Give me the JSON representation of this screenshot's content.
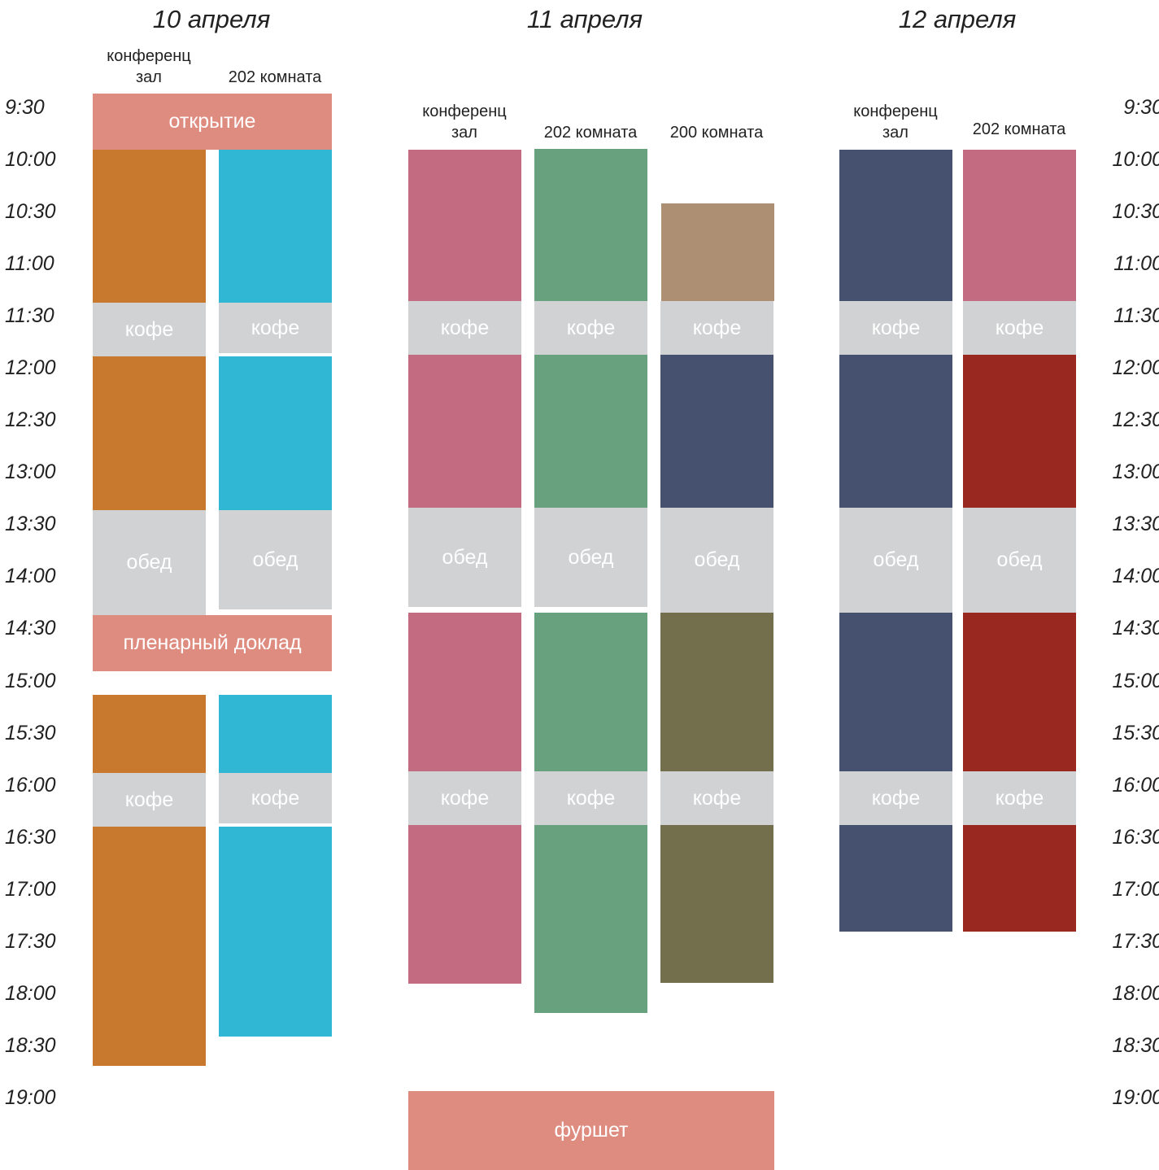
{
  "days": [
    {
      "title": "10 апреля"
    },
    {
      "title": "11 апреля"
    },
    {
      "title": "12 апреля"
    }
  ],
  "rooms": {
    "conf_hall": "конференц\nзал",
    "room202": "202 комната",
    "room200": "200 комната"
  },
  "times": [
    "9:30",
    "10:00",
    "10:30",
    "11:00",
    "11:30",
    "12:00",
    "12:30",
    "13:00",
    "13:30",
    "14:00",
    "14:30",
    "15:00",
    "15:30",
    "16:00",
    "16:30",
    "17:00",
    "17:30",
    "18:00",
    "18:30",
    "19:00"
  ],
  "labels": {
    "opening": "открытие",
    "coffee": "кофе",
    "lunch": "обед",
    "plenary": "пленарный доклад",
    "buffet": "фуршет"
  },
  "colors": {
    "orange": "#c8792e",
    "cyan": "#30b7d3",
    "salmon": "#df8c80",
    "pink": "#c36b81",
    "green": "#68a17e",
    "tan": "#ad8f74",
    "navy": "#465170",
    "olive": "#736e4c",
    "crimson": "#992920",
    "break": "#d1d2d4"
  }
}
